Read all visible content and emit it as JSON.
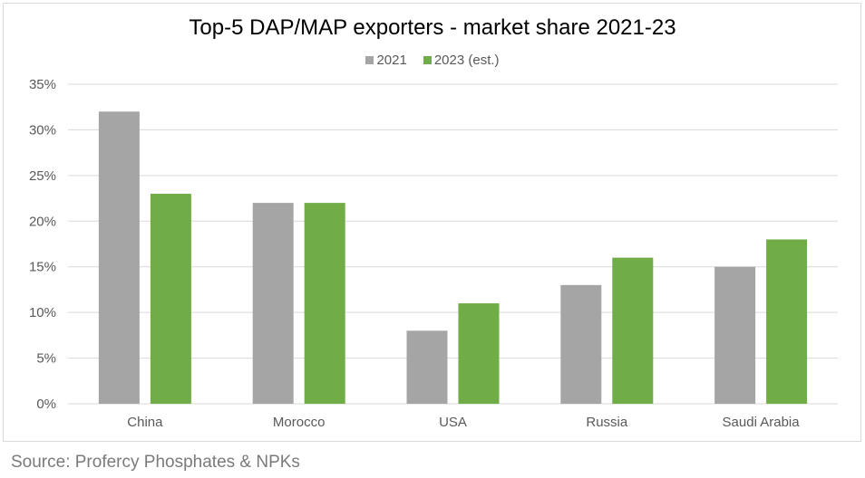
{
  "chart_data": {
    "type": "bar",
    "title": "Top-5 DAP/MAP exporters - market share 2021-23",
    "xlabel": "",
    "ylabel": "",
    "categories": [
      "China",
      "Morocco",
      "USA",
      "Russia",
      "Saudi Arabia"
    ],
    "series": [
      {
        "name": "2021",
        "color": "#a5a5a5",
        "values": [
          32,
          22,
          8,
          13,
          15
        ]
      },
      {
        "name": "2023 (est.)",
        "color": "#70ad47",
        "values": [
          23,
          22,
          11,
          16,
          18
        ]
      }
    ],
    "ylim": [
      0,
      35
    ],
    "yticks": [
      0,
      5,
      10,
      15,
      20,
      25,
      30,
      35
    ],
    "ytick_labels": [
      "0%",
      "5%",
      "10%",
      "15%",
      "20%",
      "25%",
      "30%",
      "35%"
    ],
    "grid": true,
    "legend_position": "top-center",
    "units": "percent"
  },
  "source": "Source: Profercy Phosphates & NPKs"
}
